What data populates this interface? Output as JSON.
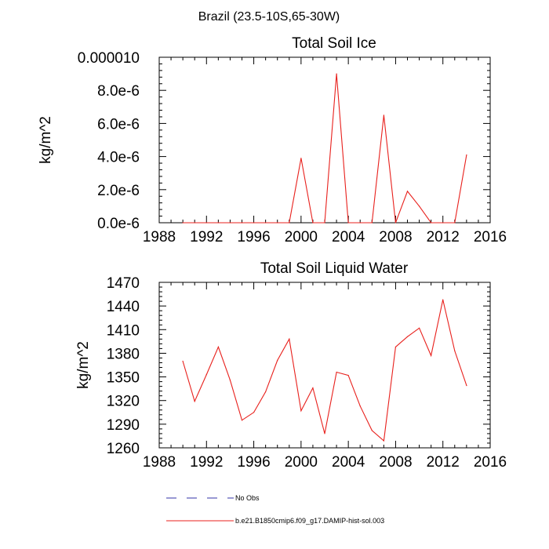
{
  "figure": {
    "suptitle": "Brazil (23.5-10S,65-30W)"
  },
  "legend": {
    "entries": [
      {
        "label": "No Obs",
        "color": "#3333aa",
        "dashed": true
      },
      {
        "label": "b.e21.B1850cmip6.f09_g17.DAMIP-hist-sol.003",
        "color": "#e8201c",
        "dashed": false
      }
    ]
  },
  "chart_data": [
    {
      "type": "line",
      "title": "Total Soil Ice",
      "ylabel": "kg/m^2",
      "xlim": [
        1988,
        2016
      ],
      "ylim": [
        0,
        1e-05
      ],
      "xticks": [
        1988,
        1992,
        1996,
        2000,
        2004,
        2008,
        2012,
        2016
      ],
      "xtick_labels": [
        "1988",
        "1992",
        "1996",
        "2000",
        "2004",
        "2008",
        "2012",
        "2016"
      ],
      "yticks": [
        0,
        2e-06,
        4e-06,
        6e-06,
        8e-06,
        1e-05
      ],
      "ytick_labels": [
        "0.0e-6",
        "2.0e-6",
        "4.0e-6",
        "6.0e-6",
        "8.0e-6",
        "0.000010"
      ],
      "series": [
        {
          "color": "#e8201c",
          "x": [
            1990,
            1991,
            1992,
            1993,
            1994,
            1995,
            1996,
            1997,
            1998,
            1999,
            2000,
            2001,
            2002,
            2003,
            2004,
            2005,
            2006,
            2007,
            2008,
            2009,
            2010,
            2011,
            2012,
            2013,
            2014
          ],
          "y": [
            0,
            0,
            0,
            0,
            0,
            0,
            0,
            0,
            0,
            0,
            3.9e-06,
            0,
            0,
            9e-06,
            0,
            0,
            0,
            6.5e-06,
            0,
            1.9e-06,
            1e-06,
            0,
            0,
            0,
            4.1e-06
          ]
        }
      ]
    },
    {
      "type": "line",
      "title": "Total Soil Liquid Water",
      "ylabel": "kg/m^2",
      "xlim": [
        1988,
        2016
      ],
      "ylim": [
        1260,
        1470
      ],
      "xticks": [
        1988,
        1992,
        1996,
        2000,
        2004,
        2008,
        2012,
        2016
      ],
      "xtick_labels": [
        "1988",
        "1992",
        "1996",
        "2000",
        "2004",
        "2008",
        "2012",
        "2016"
      ],
      "yticks": [
        1260,
        1290,
        1320,
        1350,
        1380,
        1410,
        1440,
        1470
      ],
      "ytick_labels": [
        "1260",
        "1290",
        "1320",
        "1350",
        "1380",
        "1410",
        "1440",
        "1470"
      ],
      "series": [
        {
          "color": "#e8201c",
          "x": [
            1990,
            1991,
            1992,
            1993,
            1994,
            1995,
            1996,
            1997,
            1998,
            1999,
            2000,
            2001,
            2002,
            2003,
            2004,
            2005,
            2006,
            2007,
            2008,
            2009,
            2010,
            2011,
            2012,
            2013,
            2014
          ],
          "y": [
            1370,
            1319,
            1353,
            1388,
            1346,
            1295,
            1305,
            1331,
            1371,
            1398,
            1307,
            1336,
            1278,
            1356,
            1352,
            1313,
            1282,
            1269,
            1388,
            1401,
            1412,
            1377,
            1448,
            1383,
            1339
          ]
        }
      ]
    }
  ]
}
